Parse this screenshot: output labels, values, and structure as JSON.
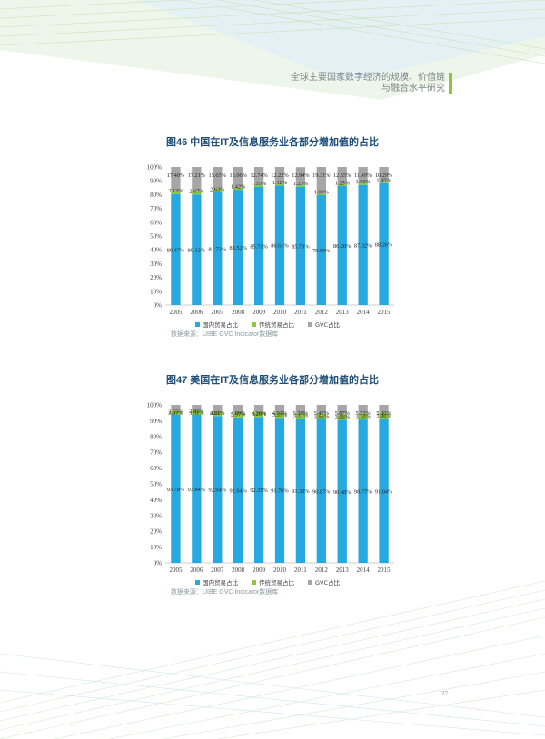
{
  "header": {
    "line1": "全球主要国家数字经济的规模、价值链",
    "line2": "与融合水平研究",
    "accent_color": "#8bc53f"
  },
  "page_number": "37",
  "colors": {
    "domestic": "#26a9e0",
    "traditional": "#8dc63f",
    "gvc": "#a6a6a6"
  },
  "charts": [
    {
      "title": "图46  中国在IT及信息服务业各部分增加值的占比",
      "source": "数据来源：UIBE GVC Indicator数据库"
    },
    {
      "title": "图47  美国在IT及信息服务业各部分增加值的占比",
      "source": "数据来源：UIBE GVC Indicator数据库"
    }
  ],
  "chart_data": [
    {
      "type": "bar",
      "stacked": true,
      "title": "图46  中国在IT及信息服务业各部分增加值的占比",
      "categories": [
        "2005",
        "2006",
        "2007",
        "2008",
        "2009",
        "2010",
        "2011",
        "2012",
        "2013",
        "2014",
        "2015"
      ],
      "ylim": [
        0,
        100
      ],
      "yticks": [
        "0%",
        "10%",
        "20%",
        "30%",
        "40%",
        "50%",
        "60%",
        "70%",
        "80%",
        "90%",
        "100%"
      ],
      "series": [
        {
          "name": "国内贸易占比",
          "color": "#26a9e0",
          "values": [
            80.47,
            80.12,
            81.72,
            83.52,
            85.71,
            86.61,
            85.73,
            79.59,
            86.2,
            87.02,
            88.26
          ],
          "labels": [
            "80.47%",
            "80.12%",
            "81.72%",
            "83.52%",
            "85.71%",
            "86.61%",
            "85.73%",
            "79.59%",
            "86.20%",
            "87.02%",
            "88.26%"
          ]
        },
        {
          "name": "传统贸易占比",
          "color": "#8dc63f",
          "values": [
            2.13,
            2.67,
            2.63,
            1.42,
            1.55,
            1.18,
            1.23,
            1.09,
            1.25,
            1.5,
            1.45
          ],
          "labels": [
            "2.13%",
            "2.67%",
            "2.63%",
            "1.42%",
            "1.55%",
            "1.18%",
            "1.23%",
            "1.09%",
            "1.25%",
            "1.50%",
            "1.45%"
          ]
        },
        {
          "name": "GVC占比",
          "color": "#a6a6a6",
          "values": [
            17.4,
            17.21,
            15.65,
            15.06,
            12.74,
            12.22,
            12.94,
            19.31,
            12.55,
            11.49,
            10.29
          ],
          "labels": [
            "17.40%",
            "17.21%",
            "15.65%",
            "15.06%",
            "12.74%",
            "12.22%",
            "12.94%",
            "19.31%",
            "12.55%",
            "11.49%",
            "10.29%"
          ]
        }
      ],
      "legend": [
        "国内贸易占比",
        "传统贸易占比",
        "GVC占比"
      ],
      "legend_position": "bottom",
      "grid": false
    },
    {
      "type": "bar",
      "stacked": true,
      "title": "图47  美国在IT及信息服务业各部分增加值的占比",
      "categories": [
        "2005",
        "2006",
        "2007",
        "2008",
        "2009",
        "2010",
        "2011",
        "2012",
        "2013",
        "2014",
        "2015"
      ],
      "ylim": [
        0,
        100
      ],
      "yticks": [
        "0%",
        "10%",
        "20%",
        "30%",
        "40%",
        "50%",
        "60%",
        "70%",
        "80%",
        "90%",
        "100%"
      ],
      "series": [
        {
          "name": "国内贸易占比",
          "color": "#26a9e0",
          "values": [
            93.78,
            93.84,
            92.94,
            92.04,
            92.35,
            91.7,
            91.3,
            90.87,
            90.48,
            90.77,
            91.04
          ],
          "labels": [
            "93.78%",
            "93.84%",
            "92.94%",
            "92.04%",
            "92.35%",
            "91.70%",
            "91.30%",
            "90.87%",
            "90.48%",
            "90.77%",
            "91.04%"
          ]
        },
        {
          "name": "传统贸易占比",
          "color": "#8dc63f",
          "values": [
            2.55,
            2.85,
            2.85,
            2.97,
            3.29,
            3.37,
            3.31,
            3.66,
            3.66,
            3.7,
            3.96
          ],
          "labels": [
            "2.55%",
            "2.85%",
            "2.85%",
            "2.97%",
            "3.29%",
            "3.37%",
            "3.31%",
            "3.66%",
            "3.66%",
            "3.70%",
            "3.96%"
          ]
        },
        {
          "name": "GVC占比",
          "color": "#a6a6a6",
          "values": [
            3.67,
            3.31,
            4.21,
            4.99,
            4.36,
            4.93,
            5.39,
            5.47,
            5.87,
            5.53,
            5.0
          ],
          "labels": [
            "3.67%",
            "3.31%",
            "4.21%",
            "4.99%",
            "4.36%",
            "4.93%",
            "5.39%",
            "5.47%",
            "5.87%",
            "5.53%",
            "5.00%"
          ]
        }
      ],
      "legend": [
        "国内贸易占比",
        "传统贸易占比",
        "GVC占比"
      ],
      "legend_position": "bottom",
      "grid": false
    }
  ]
}
